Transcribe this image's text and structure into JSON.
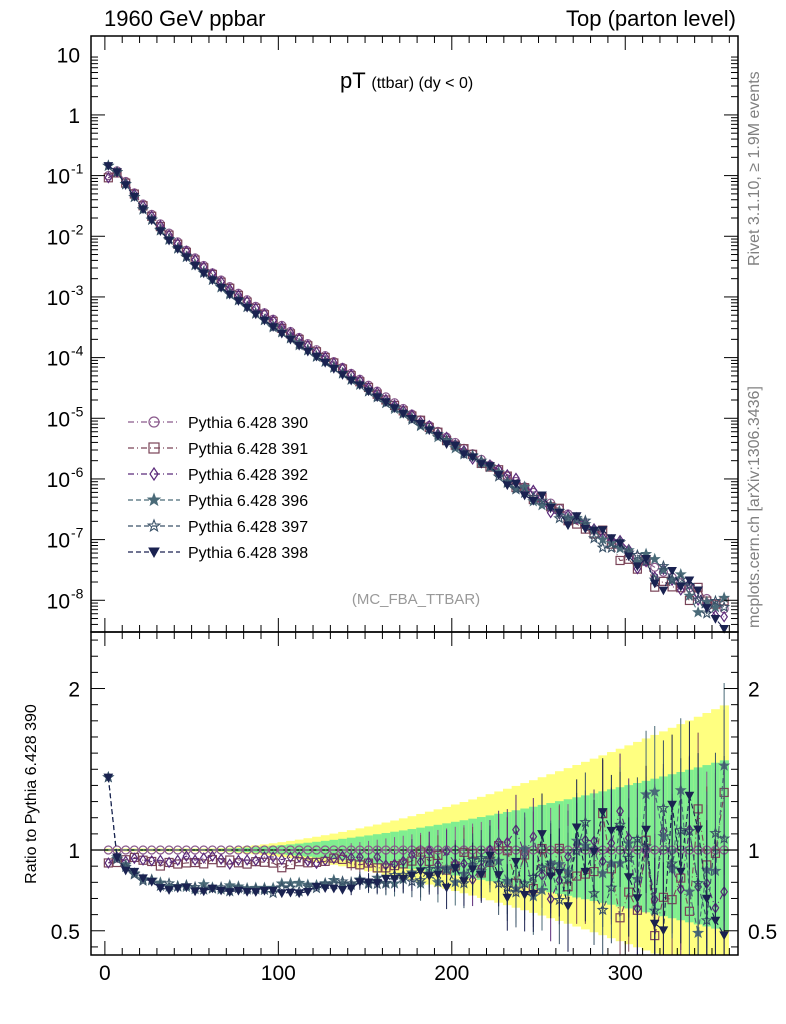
{
  "header": {
    "left": "1960 GeV ppbar",
    "right": "Top (parton level)"
  },
  "side_labels": {
    "rivet": "Rivet 3.1.10, ≥ 1.9M events",
    "mcplots": "mcplots.cern.ch [arXiv:1306.3436]"
  },
  "chart_data": [
    {
      "type": "scatter",
      "panel": "main",
      "title": "pT (ttbar) (dy < 0)",
      "analysis_label": "(MC_FBA_TTBAR)",
      "xlabel": "",
      "ylabel": "",
      "xlim": [
        -8,
        365
      ],
      "ylim": [
        3e-09,
        20
      ],
      "log_y": true,
      "x_ticks": [
        "0",
        "100",
        "200",
        "300"
      ],
      "y_tick_labels": [
        "10^-8",
        "10^-7",
        "10^-6",
        "10^-5",
        "10^-4",
        "10^-3",
        "10^-2",
        "10^-1",
        "1",
        "10"
      ],
      "legend_position": "bottom-left",
      "series": [
        {
          "name": "Pythia 6.428 390",
          "color": "#8a5a8c",
          "marker": "circle-open",
          "dash": "dashdot"
        },
        {
          "name": "Pythia 6.428 391",
          "color": "#7a4458",
          "marker": "square-open",
          "dash": "dashdot"
        },
        {
          "name": "Pythia 6.428 392",
          "color": "#5a2a7a",
          "marker": "diamond-open",
          "dash": "dashdot"
        },
        {
          "name": "Pythia 6.428 396",
          "color": "#4a6a78",
          "marker": "star-filled",
          "dash": "dash"
        },
        {
          "name": "Pythia 6.428 397",
          "color": "#3a5268",
          "marker": "star-open",
          "dash": "dash"
        },
        {
          "name": "Pythia 6.428 398",
          "color": "#1a2250",
          "marker": "triangle-down-filled",
          "dash": "dash"
        }
      ],
      "x": [
        2,
        7,
        12,
        17,
        22,
        27,
        32,
        37,
        42,
        47,
        52,
        57,
        62,
        67,
        72,
        77,
        82,
        87,
        92,
        97,
        102,
        107,
        112,
        117,
        122,
        127,
        132,
        137,
        142,
        147,
        152,
        157,
        162,
        167,
        172,
        177,
        182,
        187,
        192,
        197,
        202,
        207,
        212,
        217,
        222,
        227,
        232,
        237,
        242,
        247,
        252,
        257,
        262,
        267,
        272,
        277,
        282,
        287,
        292,
        297,
        302,
        307,
        312,
        317,
        322,
        327,
        332,
        337,
        342,
        347,
        352,
        357
      ],
      "reference_y": [
        0.1,
        0.12,
        0.08,
        0.052,
        0.034,
        0.023,
        0.016,
        0.0113,
        0.0081,
        0.0059,
        0.0044,
        0.0033,
        0.0025,
        0.0019,
        0.00148,
        0.00115,
        0.0009,
        0.0007,
        0.00055,
        0.00043,
        0.00034,
        0.00027,
        0.000215,
        0.00017,
        0.000135,
        0.000108,
        8.6e-05,
        6.9e-05,
        5.5e-05,
        4.4e-05,
        3.5e-05,
        2.8e-05,
        2.25e-05,
        1.8e-05,
        1.45e-05,
        1.17e-05,
        9.4e-06,
        7.6e-06,
        6.1e-06,
        4.9e-06,
        4e-06,
        3.2e-06,
        2.6e-06,
        2.1e-06,
        1.7e-06,
        1.38e-06,
        1.12e-06,
        9.1e-07,
        7.4e-07,
        6e-07,
        4.9e-07,
        4e-07,
        3.25e-07,
        2.65e-07,
        2.15e-07,
        1.75e-07,
        1.43e-07,
        1.17e-07,
        9.5e-08,
        7.8e-08,
        6.4e-08,
        5.2e-08,
        4.3e-08,
        3.5e-08,
        2.9e-08,
        2.4e-08,
        1.95e-08,
        1.6e-08,
        1.3e-08,
        1.07e-08,
        8.8e-09,
        7.2e-09
      ]
    },
    {
      "type": "scatter",
      "panel": "ratio",
      "ylabel": "Ratio to Pythia 6.428 390",
      "xlim": [
        -8,
        365
      ],
      "ylim": [
        0.35,
        2.35
      ],
      "y_ticks": [
        "0.5",
        "1",
        "2"
      ],
      "x_ticks": [
        "0",
        "100",
        "200",
        "300"
      ],
      "band_colors": {
        "outer": "#ffff80",
        "inner": "#80ee90"
      },
      "reference_line": 1.0
    }
  ]
}
